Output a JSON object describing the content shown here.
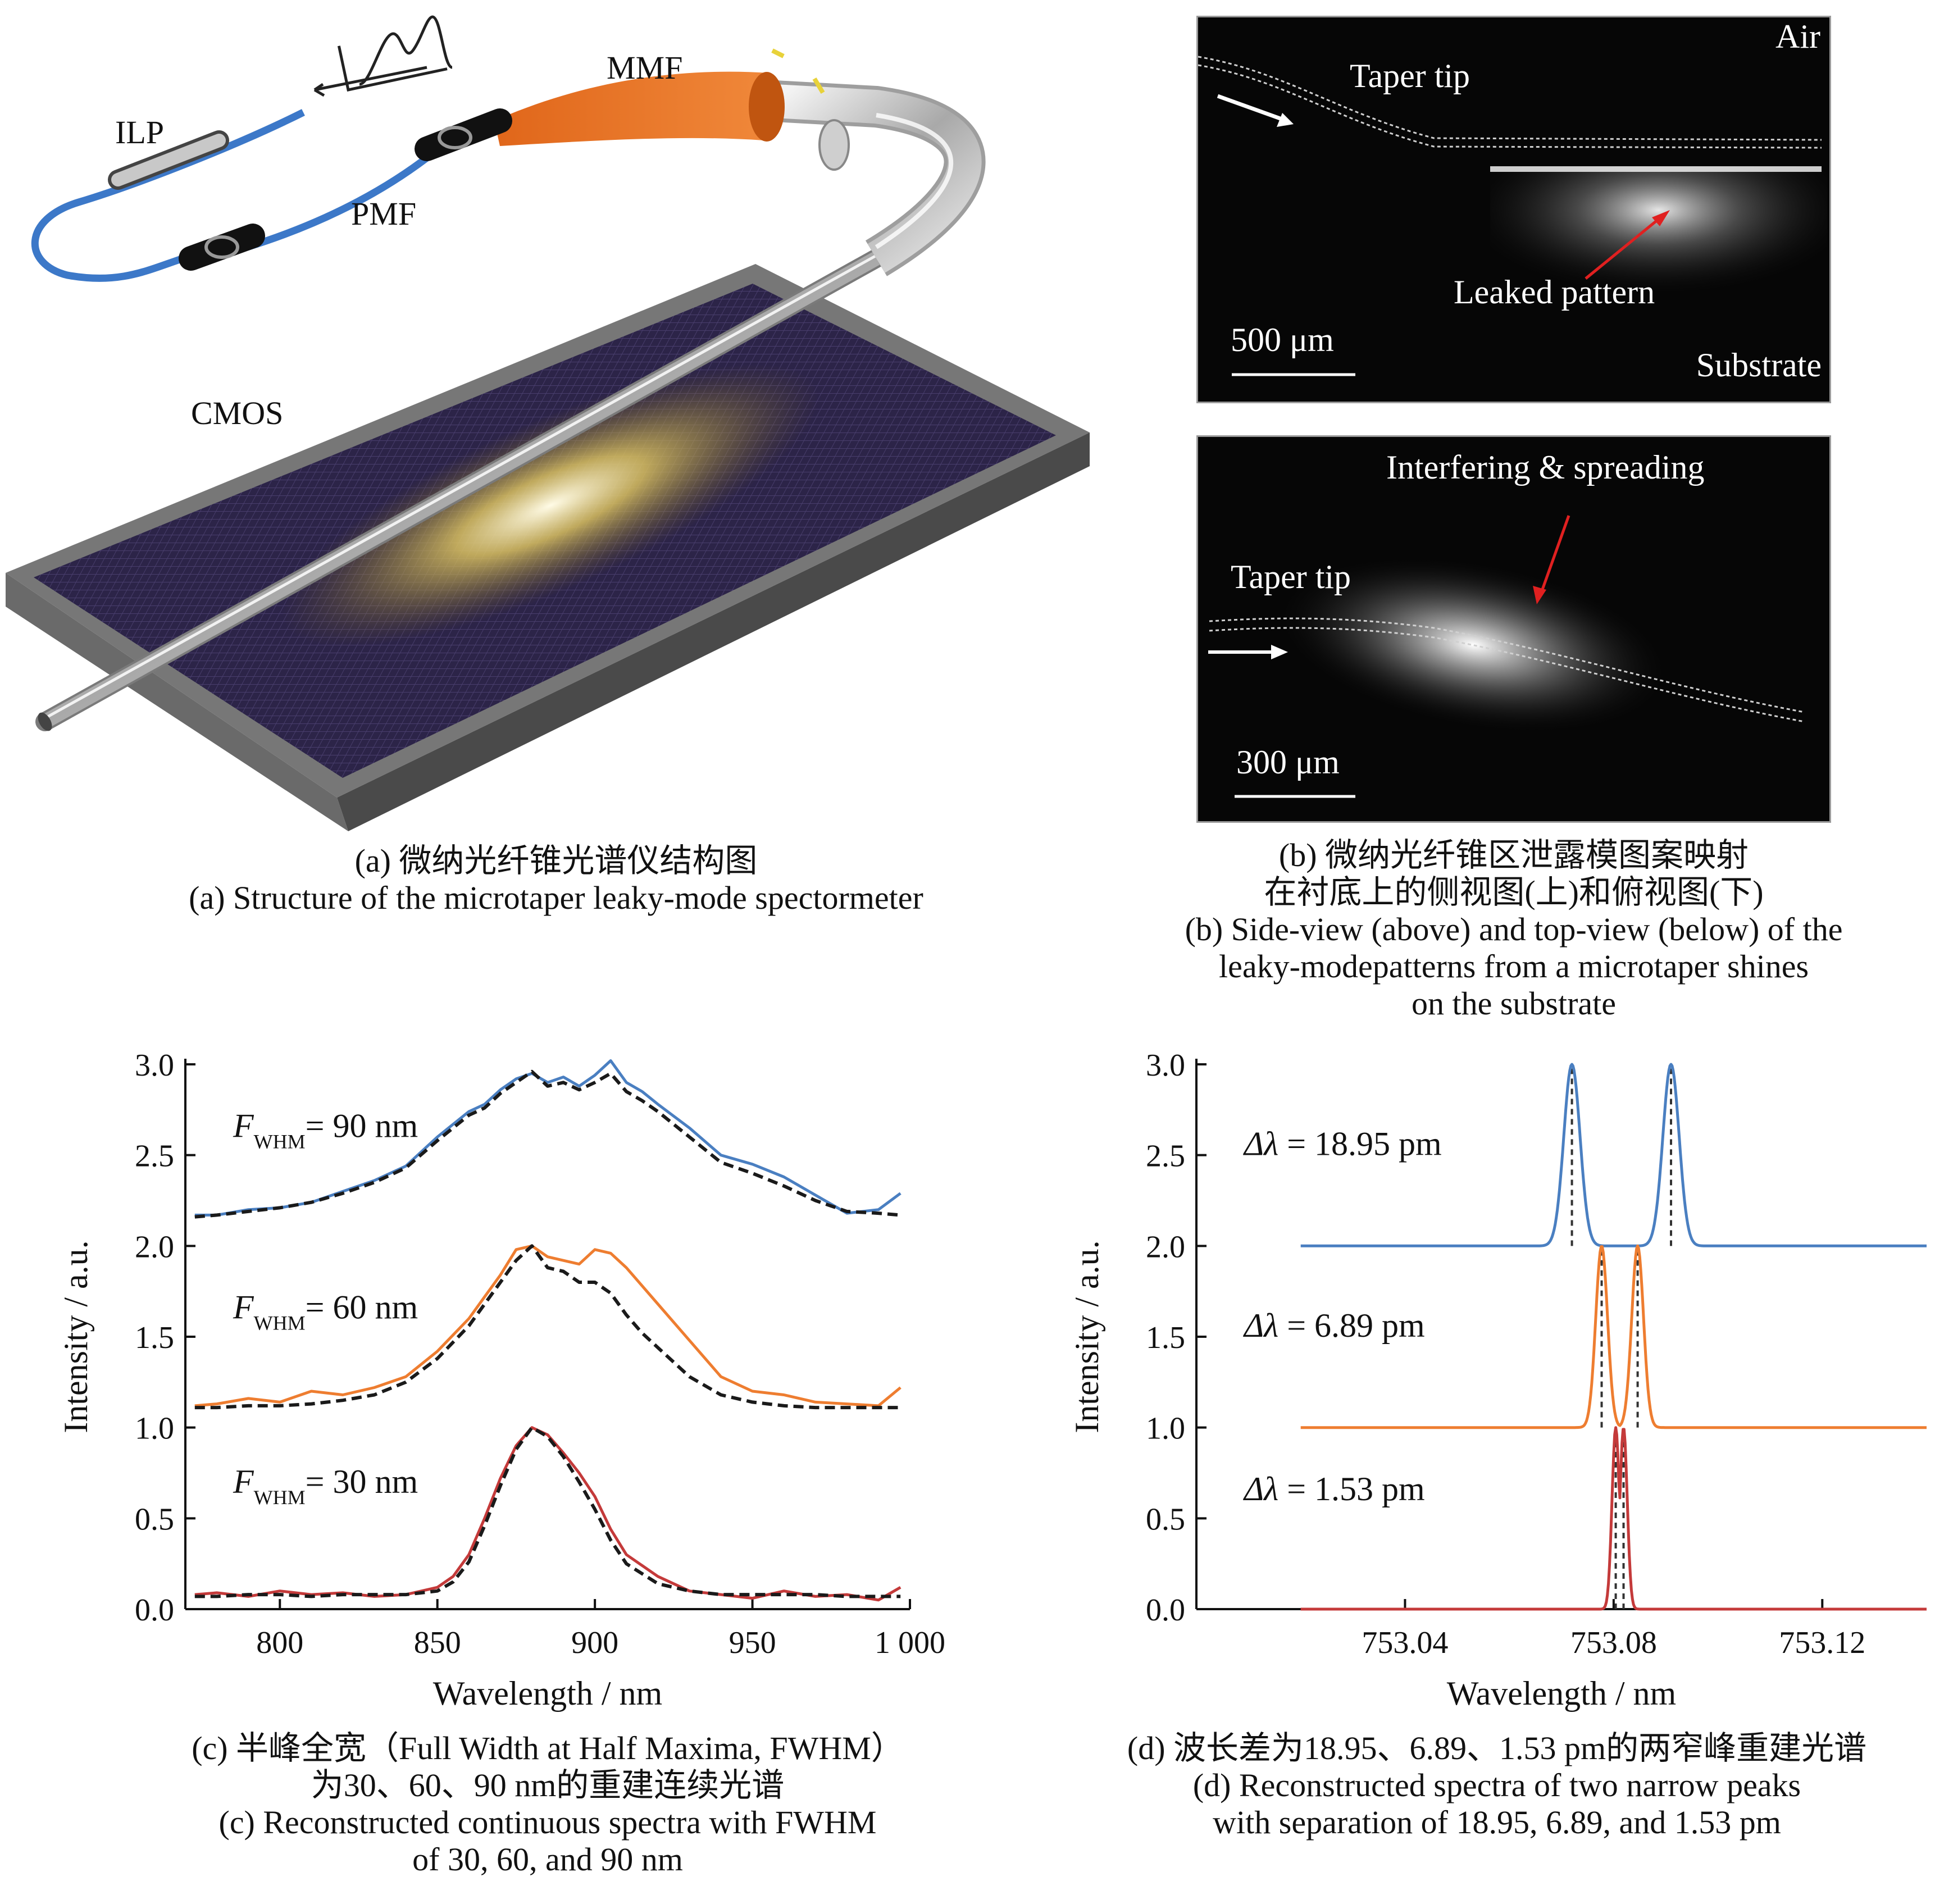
{
  "panel_a": {
    "labels": {
      "ilp": "ILP",
      "pmf": "PMF",
      "mmf": "MMF",
      "cmos": "CMOS"
    },
    "caption_cn": "(a) 微纳光纤锥光谱仪结构图",
    "caption_en": "(a) Structure of the microtaper leaky-mode spectormeter"
  },
  "panel_b": {
    "top": {
      "air": "Air",
      "taper_tip": "Taper tip",
      "leaked_pattern": "Leaked pattern",
      "scale": "500 μm",
      "substrate": "Substrate"
    },
    "bottom": {
      "interfering": "Interfering & spreading",
      "taper_tip": "Taper tip",
      "scale": "300 μm"
    },
    "caption_cn_1": "(b) 微纳光纤锥区泄露模图案映射",
    "caption_cn_2": "在衬底上的侧视图(上)和俯视图(下)",
    "caption_en_1": "(b) Side-view (above) and top-view (below) of the",
    "caption_en_2": "leaky-modepatterns from a microtaper shines",
    "caption_en_3": "on the substrate"
  },
  "panel_c": {
    "caption_cn_1": "(c) 半峰全宽（Full Width at Half Maxima, FWHM）",
    "caption_cn_2": "为30、60、90 nm的重建连续光谱",
    "caption_en_1": "(c) Reconstructed continuous spectra with FWHM",
    "caption_en_2": "of 30, 60, and 90 nm"
  },
  "panel_d": {
    "caption_cn": "(d) 波长差为18.95、6.89、1.53 pm的两窄峰重建光谱",
    "caption_en_1": "(d) Reconstructed spectra of two narrow peaks",
    "caption_en_2": "with separation of 18.95, 6.89, and 1.53 pm"
  },
  "chart_data": [
    {
      "type": "line",
      "xlabel": "Wavelength / nm",
      "ylabel": "Intensity / a.u.",
      "xlim": [
        770,
        1000
      ],
      "ylim": [
        0,
        3.0
      ],
      "x_ticks": [
        800,
        850,
        900,
        950,
        1000
      ],
      "x_tick_labels": [
        "800",
        "850",
        "900",
        "950",
        "1 000"
      ],
      "y_ticks": [
        0,
        0.5,
        1.0,
        1.5,
        2.0,
        2.5,
        3.0
      ],
      "y_tick_labels": [
        "0.0",
        "0.5",
        "1.0",
        "1.5",
        "2.0",
        "2.5",
        "3.0"
      ],
      "annotations": [
        {
          "main": "F",
          "sub": "WHM",
          "rest": "= 90 nm"
        },
        {
          "main": "F",
          "sub": "WHM",
          "rest": "= 60 nm"
        },
        {
          "main": "F",
          "sub": "WHM",
          "rest": "= 30 nm"
        }
      ],
      "series": [
        {
          "color": "#4a7fc1",
          "style": "solid",
          "x": [
            773,
            780,
            790,
            800,
            810,
            820,
            830,
            840,
            850,
            860,
            865,
            870,
            875,
            880,
            885,
            890,
            895,
            900,
            905,
            910,
            915,
            920,
            930,
            940,
            950,
            960,
            970,
            980,
            990,
            997
          ],
          "y": [
            2.17,
            2.17,
            2.2,
            2.21,
            2.24,
            2.3,
            2.36,
            2.44,
            2.6,
            2.74,
            2.78,
            2.86,
            2.92,
            2.95,
            2.9,
            2.93,
            2.88,
            2.94,
            3.02,
            2.9,
            2.85,
            2.78,
            2.65,
            2.5,
            2.45,
            2.38,
            2.28,
            2.18,
            2.2,
            2.29
          ]
        },
        {
          "color": "#1a1a1a",
          "style": "dashed",
          "x": [
            773,
            780,
            790,
            800,
            810,
            820,
            830,
            840,
            850,
            860,
            865,
            870,
            875,
            880,
            885,
            890,
            895,
            900,
            905,
            910,
            915,
            920,
            930,
            940,
            950,
            960,
            970,
            980,
            990,
            997
          ],
          "y": [
            2.16,
            2.17,
            2.19,
            2.21,
            2.24,
            2.29,
            2.35,
            2.43,
            2.58,
            2.72,
            2.76,
            2.84,
            2.9,
            2.96,
            2.88,
            2.9,
            2.86,
            2.9,
            2.95,
            2.85,
            2.8,
            2.74,
            2.6,
            2.46,
            2.4,
            2.33,
            2.25,
            2.19,
            2.18,
            2.17
          ]
        },
        {
          "color": "#ee7d30",
          "style": "solid",
          "x": [
            773,
            780,
            790,
            800,
            810,
            820,
            830,
            840,
            850,
            860,
            865,
            870,
            875,
            880,
            885,
            890,
            895,
            900,
            905,
            910,
            915,
            920,
            930,
            940,
            950,
            960,
            970,
            980,
            990,
            997
          ],
          "y": [
            1.12,
            1.13,
            1.16,
            1.14,
            1.2,
            1.18,
            1.22,
            1.28,
            1.42,
            1.6,
            1.72,
            1.84,
            1.98,
            2.0,
            1.94,
            1.92,
            1.9,
            1.98,
            1.96,
            1.88,
            1.78,
            1.68,
            1.48,
            1.28,
            1.2,
            1.18,
            1.14,
            1.13,
            1.12,
            1.22
          ]
        },
        {
          "color": "#1a1a1a",
          "style": "dashed",
          "x": [
            773,
            780,
            790,
            800,
            810,
            820,
            830,
            840,
            850,
            860,
            865,
            870,
            875,
            880,
            885,
            890,
            895,
            900,
            905,
            910,
            915,
            920,
            930,
            940,
            950,
            960,
            970,
            980,
            990,
            997
          ],
          "y": [
            1.11,
            1.11,
            1.12,
            1.12,
            1.13,
            1.15,
            1.18,
            1.25,
            1.38,
            1.56,
            1.68,
            1.8,
            1.92,
            2.0,
            1.88,
            1.86,
            1.8,
            1.8,
            1.74,
            1.62,
            1.52,
            1.44,
            1.28,
            1.18,
            1.14,
            1.12,
            1.11,
            1.11,
            1.11,
            1.11
          ]
        },
        {
          "color": "#c43a3a",
          "style": "solid",
          "x": [
            773,
            780,
            790,
            800,
            810,
            820,
            830,
            840,
            850,
            855,
            860,
            865,
            870,
            875,
            880,
            885,
            890,
            895,
            900,
            905,
            910,
            920,
            930,
            940,
            950,
            960,
            970,
            980,
            990,
            997
          ],
          "y": [
            0.08,
            0.09,
            0.07,
            0.1,
            0.08,
            0.09,
            0.07,
            0.08,
            0.12,
            0.18,
            0.3,
            0.5,
            0.72,
            0.9,
            1.0,
            0.96,
            0.86,
            0.75,
            0.62,
            0.44,
            0.3,
            0.18,
            0.1,
            0.08,
            0.06,
            0.1,
            0.07,
            0.08,
            0.05,
            0.12
          ]
        },
        {
          "color": "#1a1a1a",
          "style": "dashed",
          "x": [
            773,
            780,
            790,
            800,
            810,
            820,
            830,
            840,
            850,
            855,
            860,
            865,
            870,
            875,
            880,
            885,
            890,
            895,
            900,
            905,
            910,
            920,
            930,
            940,
            950,
            960,
            970,
            980,
            990,
            997
          ],
          "y": [
            0.07,
            0.07,
            0.08,
            0.08,
            0.07,
            0.08,
            0.08,
            0.08,
            0.1,
            0.15,
            0.26,
            0.46,
            0.68,
            0.88,
            1.0,
            0.95,
            0.84,
            0.7,
            0.55,
            0.38,
            0.25,
            0.14,
            0.1,
            0.08,
            0.08,
            0.08,
            0.08,
            0.07,
            0.07,
            0.07
          ]
        }
      ]
    },
    {
      "type": "line",
      "xlabel": "Wavelength / nm",
      "ylabel": "Intensity / a.u.",
      "xlim": [
        753.0,
        753.14
      ],
      "ylim": [
        0,
        3.0
      ],
      "x_ticks": [
        753.04,
        753.08,
        753.12
      ],
      "x_tick_labels": [
        "753.04",
        "753.08",
        "753.12"
      ],
      "y_ticks": [
        0,
        0.5,
        1.0,
        1.5,
        2.0,
        2.5,
        3.0
      ],
      "y_tick_labels": [
        "0.0",
        "0.5",
        "1.0",
        "1.5",
        "2.0",
        "2.5",
        "3.0"
      ],
      "annotations": [
        {
          "main": "Δλ",
          "rest": " = 18.95 pm"
        },
        {
          "main": "Δλ",
          "rest": " = 6.89 pm"
        },
        {
          "main": "Δλ",
          "rest": " = 1.53 pm"
        }
      ],
      "series": [
        {
          "color": "#4a7fc1",
          "baseline": 2.0,
          "peaks": [
            753.072,
            753.091
          ],
          "width": 0.0022,
          "height": 1.0
        },
        {
          "color": "#ee7d30",
          "baseline": 1.0,
          "peaks": [
            753.0777,
            753.0846
          ],
          "width": 0.0016,
          "height": 1.0
        },
        {
          "color": "#c43a3a",
          "baseline": 0.0,
          "peaks": [
            753.0804,
            753.0819
          ],
          "width": 0.001,
          "height": 1.0
        }
      ],
      "reference_lines": [
        753.072,
        753.091,
        753.0777,
        753.0846,
        753.0804,
        753.0819
      ]
    }
  ]
}
